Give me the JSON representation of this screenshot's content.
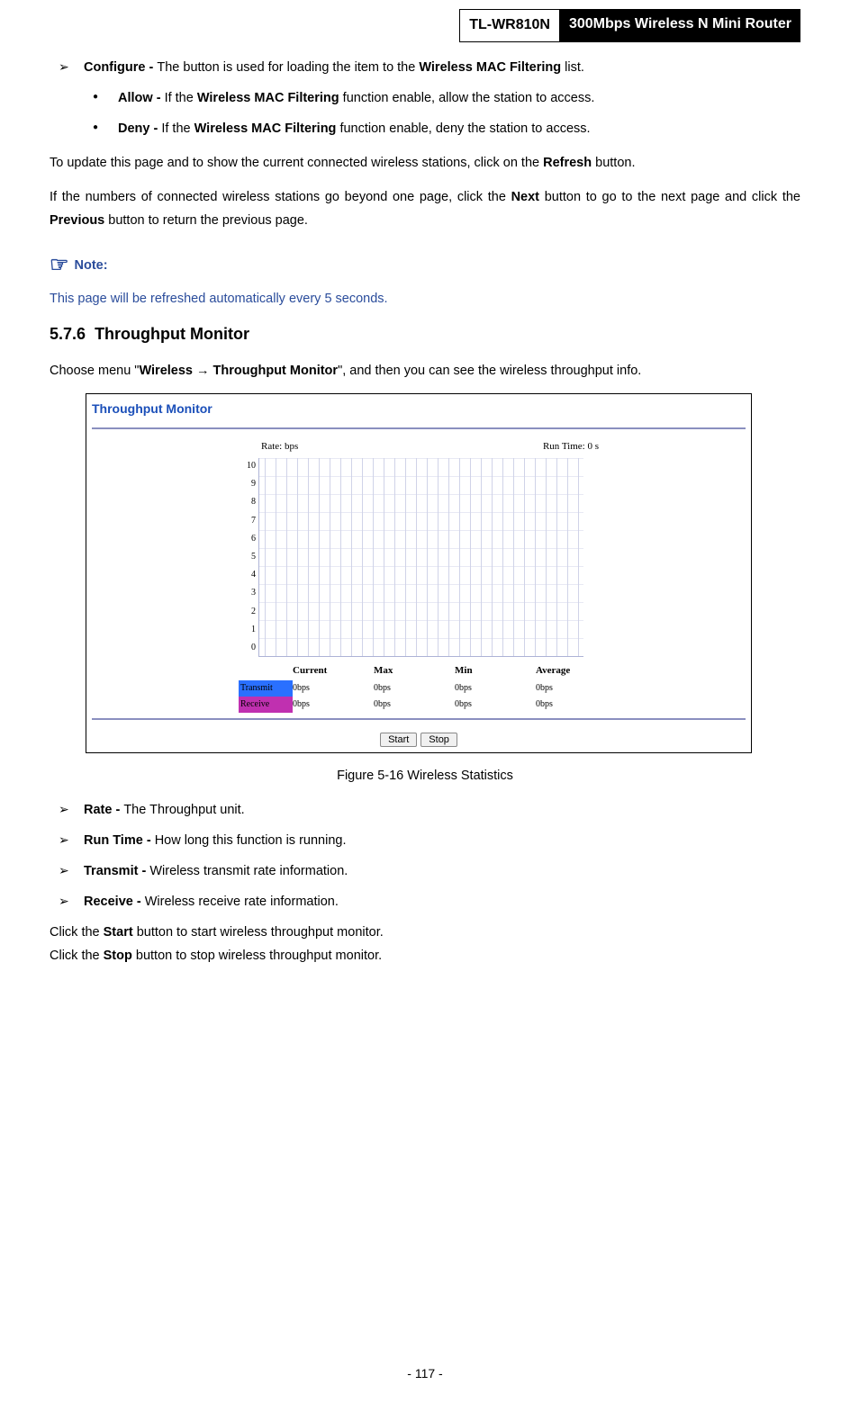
{
  "header": {
    "model": "TL-WR810N",
    "product": "300Mbps Wireless N Mini Router"
  },
  "configure": {
    "label": "Configure - ",
    "text_before": "The button is used for loading the item to the ",
    "bold1": "Wireless MAC Filtering",
    "text_after": " list."
  },
  "allow": {
    "label": "Allow - ",
    "text_before": "If the ",
    "bold1": "Wireless MAC Filtering",
    "text_after": " function enable, allow the station to access."
  },
  "deny": {
    "label": "Deny - ",
    "text_before": "If the ",
    "bold1": "Wireless MAC Filtering",
    "text_after": " function enable, deny the station to access."
  },
  "para_refresh": {
    "before": "To update this page and to show the current connected wireless stations, click on the ",
    "bold": "Refresh",
    "after": " button."
  },
  "para_next": {
    "before": "If the numbers of connected wireless stations go beyond one page, click the ",
    "bold1": "Next",
    "mid": " button to go to the next page and click the ",
    "bold2": "Previous",
    "after": " button to return the previous page."
  },
  "note": {
    "label": "Note:",
    "text": "This page will be refreshed automatically every 5 seconds."
  },
  "section": {
    "number": "5.7.6",
    "title": "Throughput Monitor"
  },
  "choose_menu": {
    "before": "Choose menu \"",
    "bold1": "Wireless",
    "arrow": " → ",
    "bold2": "Throughput Monitor",
    "after": "\", and then you can see the wireless throughput info."
  },
  "figure": {
    "panel_title": "Throughput Monitor",
    "rate_label": "Rate: bps",
    "runtime_label": "Run Time: 0 s",
    "y_ticks": [
      "0",
      "1",
      "2",
      "3",
      "4",
      "5",
      "6",
      "7",
      "8",
      "9",
      "10"
    ],
    "columns": [
      "",
      "Current",
      "Max",
      "Min",
      "Average"
    ],
    "transmit": {
      "label": "Transmit",
      "current": "0bps",
      "max": "0bps",
      "min": "0bps",
      "avg": "0bps"
    },
    "receive": {
      "label": "Receive",
      "current": "0bps",
      "max": "0bps",
      "min": "0bps",
      "avg": "0bps"
    },
    "start_btn": "Start",
    "stop_btn": "Stop",
    "caption": "Figure 5-16 Wireless Statistics"
  },
  "defs": {
    "rate": {
      "label": "Rate - ",
      "text": "The Throughput unit."
    },
    "runtime": {
      "label": "Run Time - ",
      "text": "How long this function is running."
    },
    "transmit": {
      "label": "Transmit - ",
      "text": "Wireless transmit rate information."
    },
    "receive": {
      "label": "Receive - ",
      "text": "Wireless receive rate information."
    }
  },
  "start_line": {
    "before": "Click the ",
    "bold": "Start",
    "after": " button to start wireless throughput monitor."
  },
  "stop_line": {
    "before": "Click the ",
    "bold": "Stop",
    "after": " button to stop wireless throughput monitor."
  },
  "page_number": "- 117 -"
}
